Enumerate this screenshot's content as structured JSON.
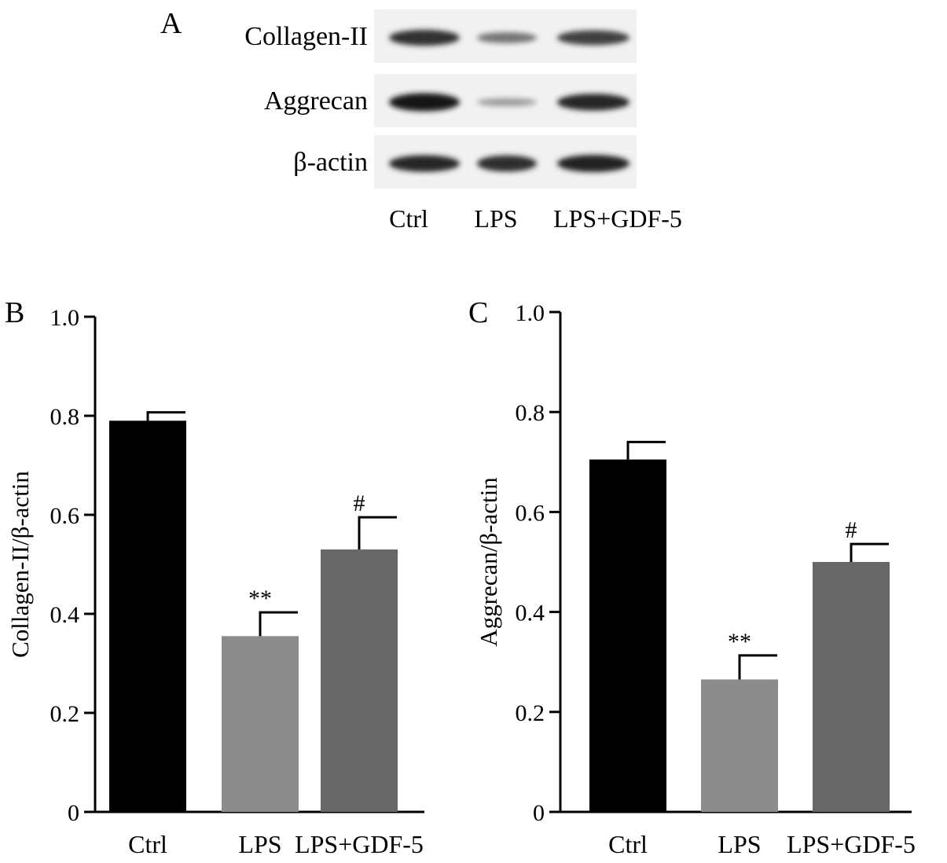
{
  "panel_a": {
    "letter": "A",
    "rows": [
      {
        "label": "Collagen-II",
        "intensity": [
          0.8,
          0.45,
          0.72
        ]
      },
      {
        "label": "Aggrecan",
        "intensity": [
          0.95,
          0.25,
          0.85
        ]
      },
      {
        "label": "β-actin",
        "intensity": [
          0.85,
          0.82,
          0.88
        ]
      }
    ],
    "lanes": [
      "Ctrl",
      "LPS",
      "LPS+GDF-5"
    ]
  },
  "chart_data": [
    {
      "type": "bar",
      "letter": "B",
      "categories": [
        "Ctrl",
        "LPS",
        "LPS+GDF-5"
      ],
      "values": [
        0.79,
        0.355,
        0.53
      ],
      "errors": [
        0.017,
        0.048,
        0.065
      ],
      "annotations": [
        "",
        "**",
        "#"
      ],
      "colors": [
        "#000000",
        "#8c8c8c",
        "#676767"
      ],
      "ylabel": "Collagen-II/β-actin",
      "ylim": [
        0,
        1.0
      ],
      "yticks": [
        0,
        0.2,
        0.4,
        0.6,
        0.8,
        1.0
      ],
      "ytick_labels": [
        "0",
        "0.2",
        "0.4",
        "0.6",
        "0.8",
        "1.0"
      ]
    },
    {
      "type": "bar",
      "letter": "C",
      "categories": [
        "Ctrl",
        "LPS",
        "LPS+GDF-5"
      ],
      "values": [
        0.705,
        0.265,
        0.5
      ],
      "errors": [
        0.035,
        0.048,
        0.036
      ],
      "annotations": [
        "",
        "**",
        "#"
      ],
      "colors": [
        "#000000",
        "#8c8c8c",
        "#676767"
      ],
      "ylabel": "Aggrecan/β-actin",
      "ylim": [
        0,
        1.0
      ],
      "yticks": [
        0,
        0.2,
        0.4,
        0.6,
        0.8,
        1.0
      ],
      "ytick_labels": [
        "0",
        "0.2",
        "0.4",
        "0.6",
        "0.8",
        "1.0"
      ]
    }
  ]
}
